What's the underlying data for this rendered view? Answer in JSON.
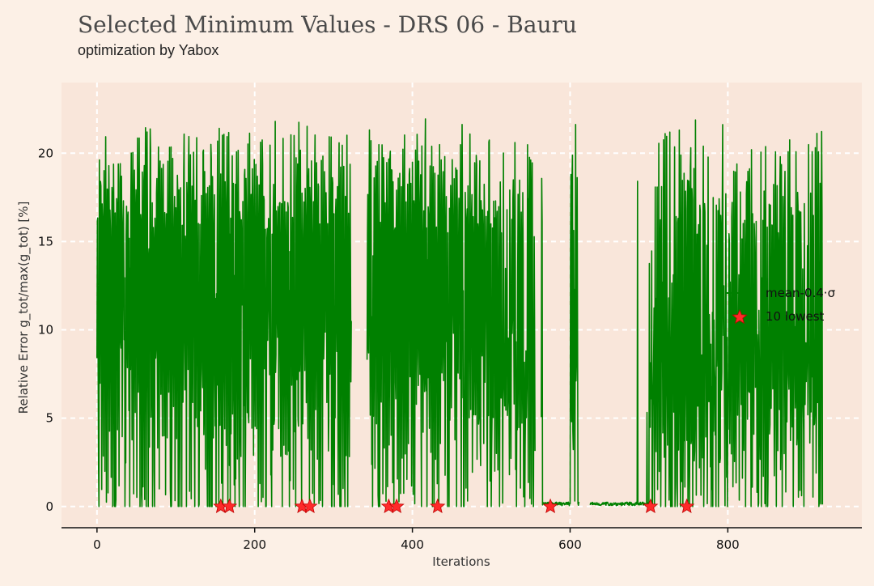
{
  "title": "Selected Minimum Values - DRS 06 - Bauru",
  "subtitle": "optimization by Yabox",
  "colors": {
    "background": "#fcf0e6",
    "plot_background": "#f9e6da",
    "grid": "#ffffff",
    "line": "#008000",
    "marker": "#ff2a2a"
  },
  "chart_data": {
    "type": "line",
    "title": "Selected Minimum Values - DRS 06 - Bauru",
    "subtitle": "optimization by Yabox",
    "xlabel": "Iterations",
    "ylabel": "Relative Error g_tot/max(g_tot) [%]",
    "xlim": [
      -45,
      970
    ],
    "ylim": [
      -1.2,
      24
    ],
    "x_ticks": [
      0,
      200,
      400,
      600,
      800
    ],
    "y_ticks": [
      0,
      5,
      10,
      15,
      20
    ],
    "grid": true,
    "legend_position": "right",
    "series": [
      {
        "name": "mean-0.4·σ",
        "style": "line",
        "segments": [
          {
            "x": [
              0,
              920
            ],
            "points_per_unit": 1,
            "description": "dense oscillating trace between 0 and ~22 percent"
          }
        ],
        "gaps": [
          [
            323,
            342
          ],
          [
            556,
            563
          ],
          [
            612,
            625
          ]
        ],
        "low_regions": [
          [
            565,
            600
          ],
          [
            610,
            700
          ]
        ]
      },
      {
        "name": "10 lowest",
        "style": "star",
        "x": [
          157,
          168,
          260,
          270,
          370,
          380,
          432,
          575,
          702,
          748
        ],
        "y": [
          0,
          0,
          0,
          0,
          0,
          0,
          0,
          0,
          0,
          0
        ]
      }
    ],
    "legend": [
      {
        "label": "mean-0.4·σ",
        "marker": "line"
      },
      {
        "label": "10 lowest",
        "marker": "star"
      }
    ]
  }
}
